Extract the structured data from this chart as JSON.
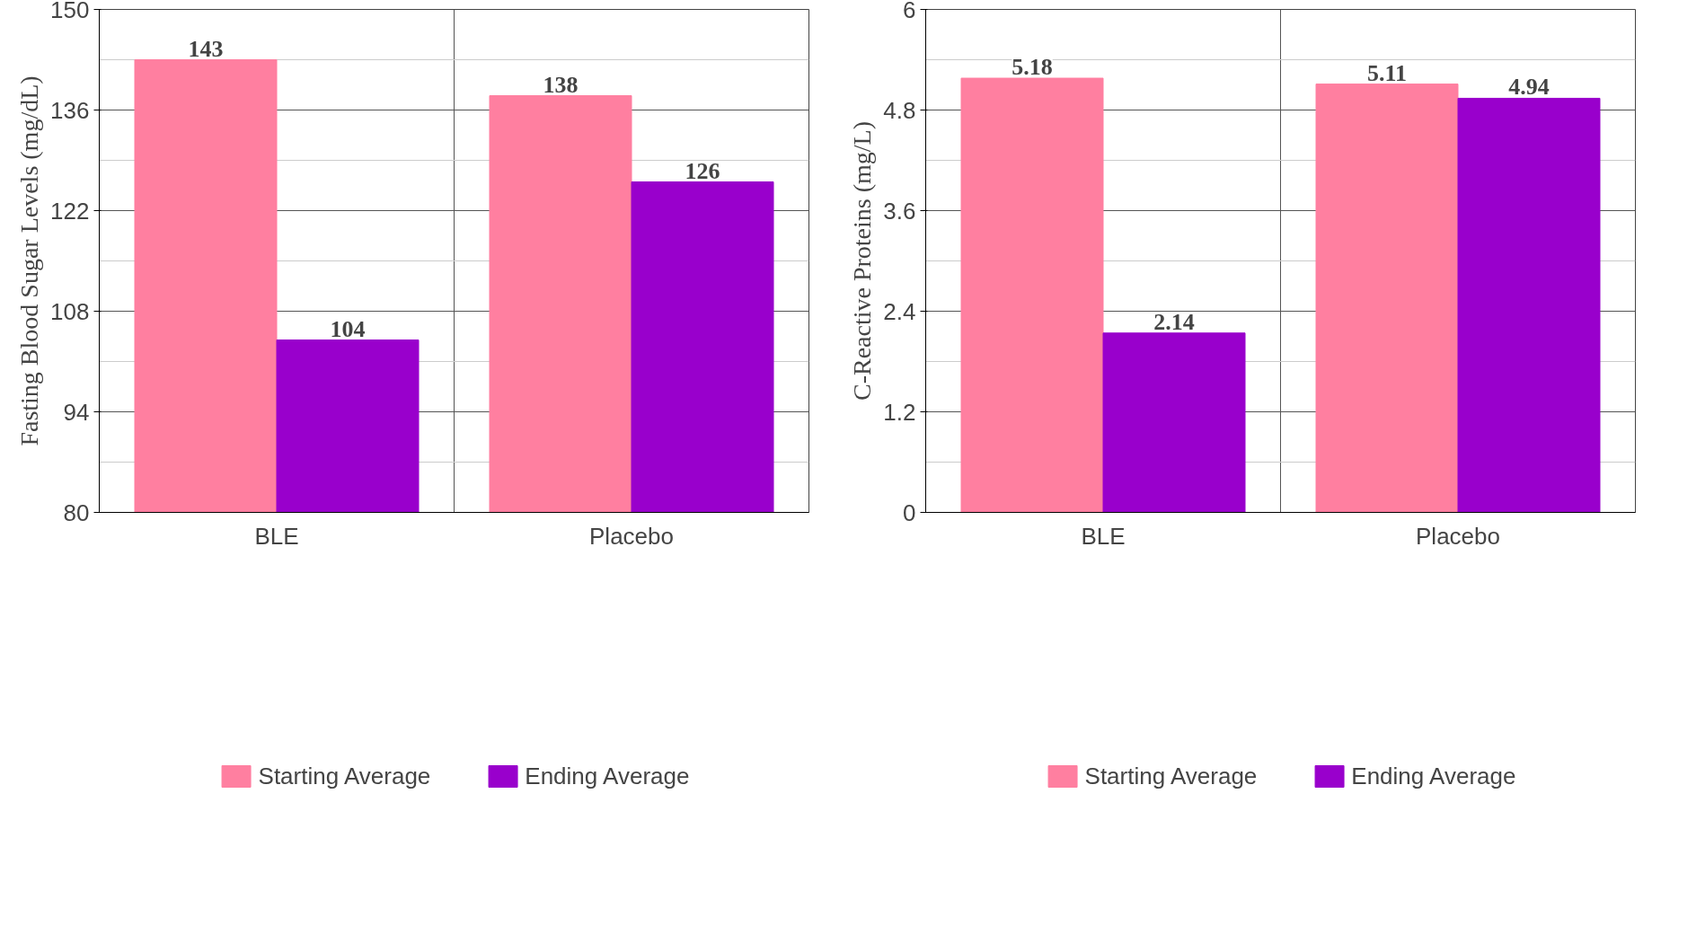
{
  "chart_data": [
    {
      "type": "bar",
      "ylabel": "Fasting Blood Sugar Levels (mg/dL)",
      "categories": [
        "BLE",
        "Placebo"
      ],
      "series": [
        {
          "name": "Starting Average",
          "color": "#ff7fa0",
          "values": [
            143,
            138
          ]
        },
        {
          "name": "Ending Average",
          "color": "#9900cc",
          "values": [
            104,
            126
          ]
        }
      ],
      "ylim": [
        80,
        150
      ],
      "yticks": [
        80,
        94,
        108,
        122,
        136,
        150
      ],
      "grid": true,
      "data_labels": true,
      "legend": "bottom"
    },
    {
      "type": "bar",
      "ylabel": "C-Reactive Proteins (mg/L)",
      "categories": [
        "BLE",
        "Placebo"
      ],
      "series": [
        {
          "name": "Starting Average",
          "color": "#ff7fa0",
          "values": [
            5.18,
            5.11
          ]
        },
        {
          "name": "Ending Average",
          "color": "#9900cc",
          "values": [
            2.14,
            4.94
          ]
        }
      ],
      "ylim": [
        0,
        6
      ],
      "yticks": [
        0,
        1.2,
        2.4,
        3.6,
        4.8,
        6
      ],
      "grid": true,
      "data_labels": true,
      "legend": "bottom"
    }
  ]
}
